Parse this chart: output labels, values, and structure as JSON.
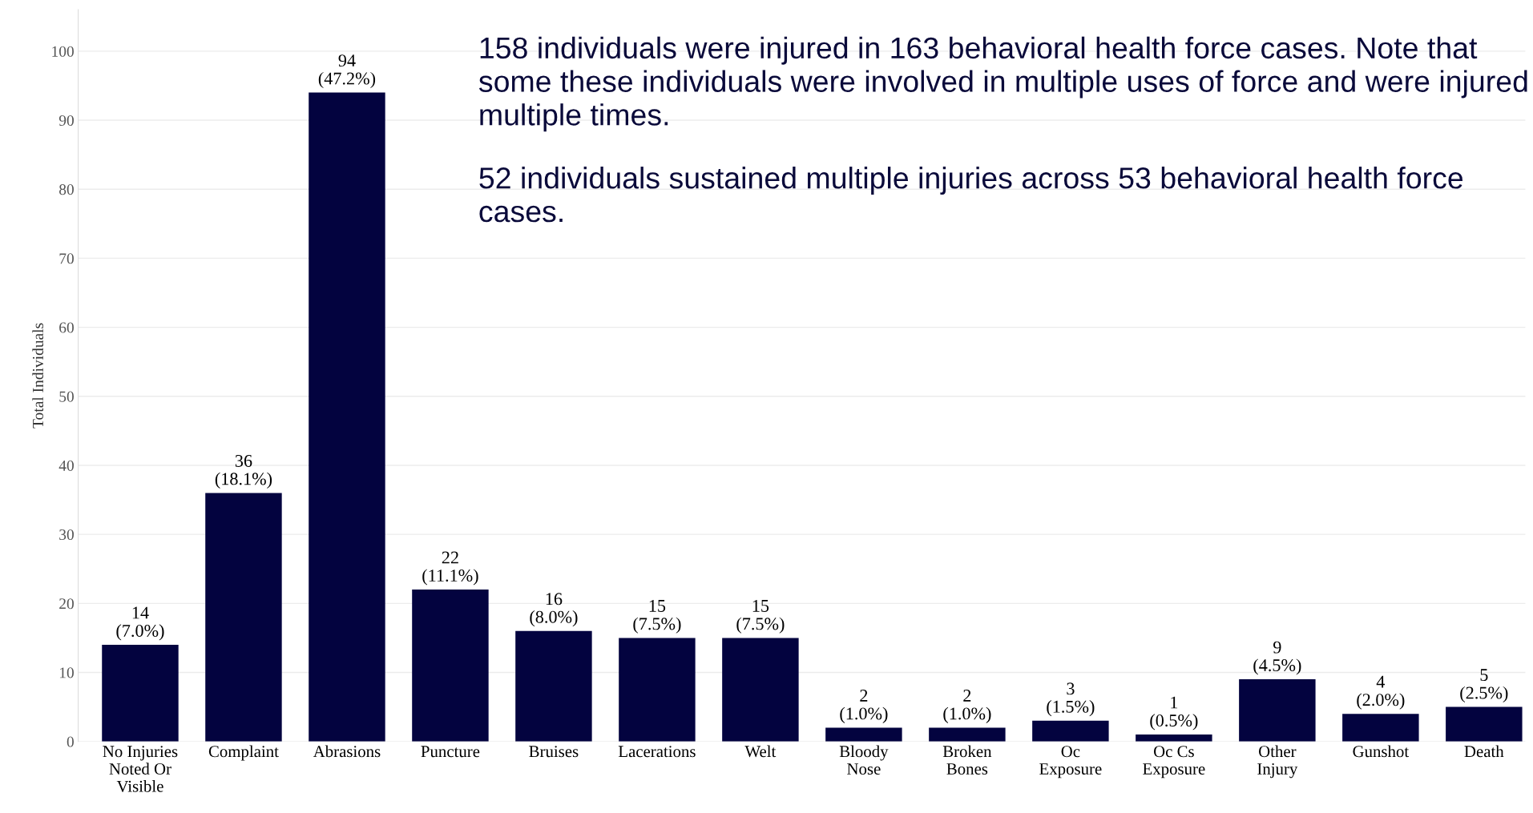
{
  "chart_data": {
    "type": "bar",
    "ylabel": "Total Individuals",
    "categories": [
      "No Injuries\nNoted Or\nVisible",
      "Complaint",
      "Abrasions",
      "Puncture",
      "Bruises",
      "Lacerations",
      "Welt",
      "Bloody\nNose",
      "Broken\nBones",
      "Oc\nExposure",
      "Oc Cs\nExposure",
      "Other\nInjury",
      "Gunshot",
      "Death"
    ],
    "values": [
      14,
      36,
      94,
      22,
      16,
      15,
      15,
      2,
      2,
      3,
      1,
      9,
      4,
      5
    ],
    "value_labels": [
      "14\n(7.0%)",
      "36\n(18.1%)",
      "94\n(47.2%)",
      "22\n(11.1%)",
      "16\n(8.0%)",
      "15\n(7.5%)",
      "15\n(7.5%)",
      "2\n(1.0%)",
      "2\n(1.0%)",
      "3\n(1.5%)",
      "1\n(0.5%)",
      "9\n(4.5%)",
      "4\n(2.0%)",
      "5\n(2.5%)"
    ],
    "color": "#03033f",
    "ylim": [
      0,
      106
    ],
    "yticks": [
      0,
      10,
      20,
      30,
      40,
      50,
      60,
      70,
      80,
      90,
      100
    ],
    "grid": "y",
    "annotations": [
      "158 individuals were injured in 163 behavioral health force cases. Note that some these individuals were involved in multiple uses of force and were injured multiple times.",
      "52 individuals sustained multiple injuries across 53 behavioral health force cases."
    ]
  }
}
